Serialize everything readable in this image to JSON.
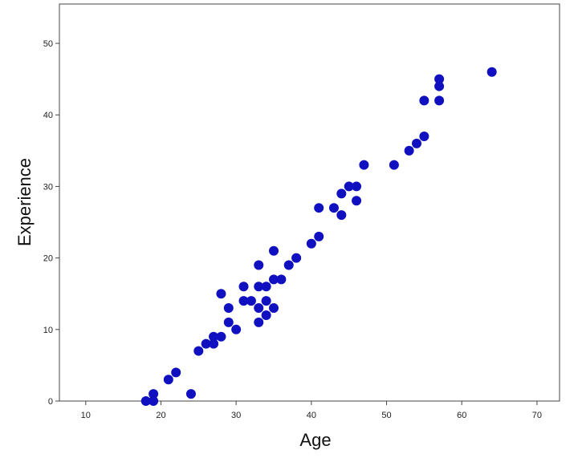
{
  "chart_data": {
    "type": "scatter",
    "xlabel": "Age",
    "ylabel": "Experience",
    "xlim": [
      6.5,
      73
    ],
    "ylim": [
      0,
      55.5
    ],
    "xticks": [
      10,
      20,
      30,
      40,
      50,
      60,
      70
    ],
    "yticks": [
      0,
      10,
      20,
      30,
      40,
      50
    ],
    "grid": false,
    "marker_color": "#1010C0",
    "series": [
      {
        "x": [
          18,
          19,
          19,
          21,
          22,
          24,
          25,
          26,
          27,
          27,
          28,
          28,
          29,
          29,
          30,
          31,
          31,
          32,
          33,
          33,
          33,
          33,
          34,
          34,
          34,
          35,
          35,
          35,
          36,
          37,
          38,
          40,
          41,
          41,
          43,
          44,
          44,
          45,
          46,
          46,
          47,
          51,
          53,
          54,
          55,
          55,
          57,
          57,
          57,
          64
        ],
        "y": [
          0,
          0,
          1,
          3,
          4,
          1,
          7,
          8,
          8,
          9,
          9,
          15,
          11,
          13,
          10,
          14,
          16,
          14,
          11,
          13,
          16,
          19,
          12,
          14,
          16,
          13,
          17,
          21,
          17,
          19,
          20,
          22,
          23,
          27,
          27,
          26,
          29,
          30,
          28,
          30,
          33,
          33,
          35,
          36,
          37,
          42,
          42,
          44,
          45,
          46
        ]
      }
    ]
  }
}
